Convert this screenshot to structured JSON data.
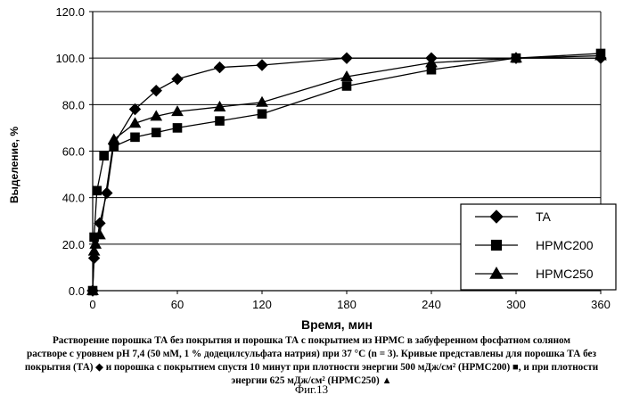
{
  "chart_data": {
    "type": "line",
    "ylabel": "Выделение, %",
    "xlabel": "Время, мин",
    "xlim": [
      0,
      360
    ],
    "ylim": [
      0,
      120
    ],
    "x_ticks": [
      "0",
      "60",
      "120",
      "180",
      "240",
      "300",
      "360"
    ],
    "y_ticks": [
      "0.0",
      "20.0",
      "40.0",
      "60.0",
      "80.0",
      "100.0",
      "120.0"
    ],
    "grid": "horizontal",
    "legend_position": "bottom-right",
    "series": [
      {
        "name": "TA",
        "marker": "diamond",
        "x": [
          0,
          1,
          5,
          10,
          15,
          30,
          45,
          60,
          90,
          120,
          180,
          240,
          300,
          360
        ],
        "y": [
          0,
          14,
          29,
          42,
          63,
          78,
          86,
          91,
          96,
          97,
          100,
          100,
          100,
          100
        ]
      },
      {
        "name": "HPMC200",
        "marker": "square",
        "x": [
          0,
          1,
          3,
          8,
          15,
          30,
          45,
          60,
          90,
          120,
          180,
          240,
          300,
          360
        ],
        "y": [
          0,
          23,
          43,
          58,
          62,
          66,
          68,
          70,
          73,
          76,
          88,
          95,
          100,
          102
        ]
      },
      {
        "name": "HPMC250",
        "marker": "triangle",
        "x": [
          0,
          1,
          2,
          5,
          15,
          30,
          45,
          60,
          90,
          120,
          180,
          240,
          300,
          360
        ],
        "y": [
          0,
          17,
          20,
          24,
          65,
          72,
          75,
          77,
          79,
          81,
          92,
          98,
          100,
          101
        ]
      }
    ]
  },
  "caption": {
    "line1": "Растворение порошка ТА без покрытия и порошка ТА с покрытием из НРМС в забуференном фосфатном соляном",
    "line2": "растворе с уровнем рН 7,4 (50 мМ, 1 % додецилсульфата натрия) при 37 °С (n = 3). Кривые представлены для порошка ТА без",
    "line3": "покрытия (ТА) ◆ и порошка с покрытием спустя 10 минут при плотности энергии 500 мДж/см² (НРМС200) ■, и при плотности",
    "line4": "энергии 625 мДж/см² (НРМС250) ▲"
  },
  "figure_label": "Фиг.13"
}
